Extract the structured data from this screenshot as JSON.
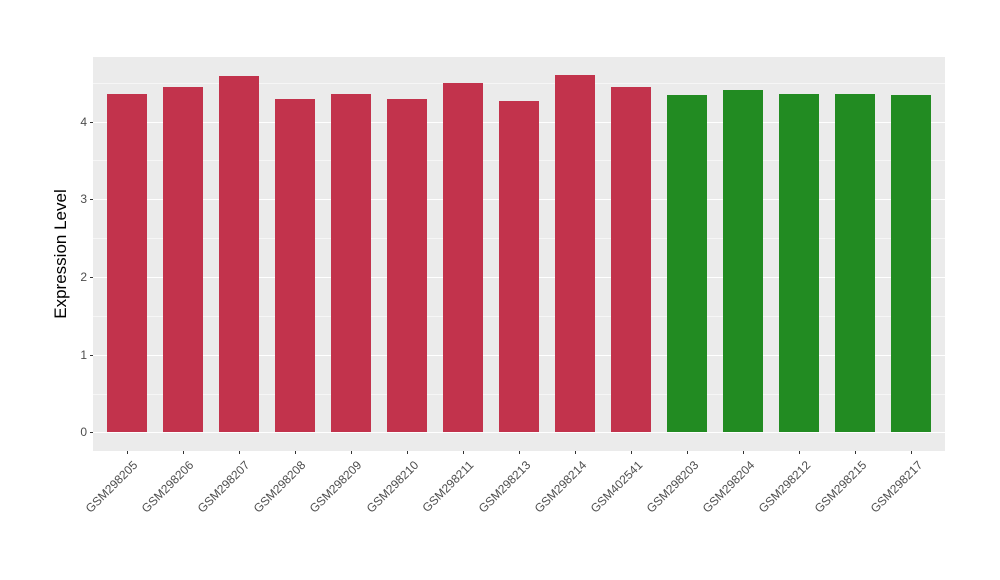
{
  "chart_data": {
    "type": "bar",
    "title": "",
    "ylabel": "Expression Level",
    "xlabel": "",
    "categories": [
      "GSM298205",
      "GSM298206",
      "GSM298207",
      "GSM298208",
      "GSM298209",
      "GSM298210",
      "GSM298211",
      "GSM298213",
      "GSM298214",
      "GSM402541",
      "GSM298203",
      "GSM298204",
      "GSM298212",
      "GSM298215",
      "GSM298217"
    ],
    "values": [
      4.35,
      4.45,
      4.58,
      4.29,
      4.35,
      4.29,
      4.49,
      4.27,
      4.6,
      4.44,
      4.34,
      4.4,
      4.35,
      4.35,
      4.34
    ],
    "bar_colors": [
      "#C2334C",
      "#C2334C",
      "#C2334C",
      "#C2334C",
      "#C2334C",
      "#C2334C",
      "#C2334C",
      "#C2334C",
      "#C2334C",
      "#C2334C",
      "#228B22",
      "#228B22",
      "#228B22",
      "#228B22",
      "#228B22"
    ],
    "ylim": [
      -0.24,
      4.83
    ],
    "yticks": [
      0,
      1,
      2,
      3,
      4
    ],
    "yticks_minor": [
      0.5,
      1.5,
      2.5,
      3.5,
      4.5
    ],
    "xtick_angle": 45,
    "grid": true,
    "legend": "none",
    "panel_bg": "#EBEBEB",
    "grid_color": "#FFFFFF",
    "axis_text_color": "#4D4D4D",
    "tick_color": "#333333"
  }
}
